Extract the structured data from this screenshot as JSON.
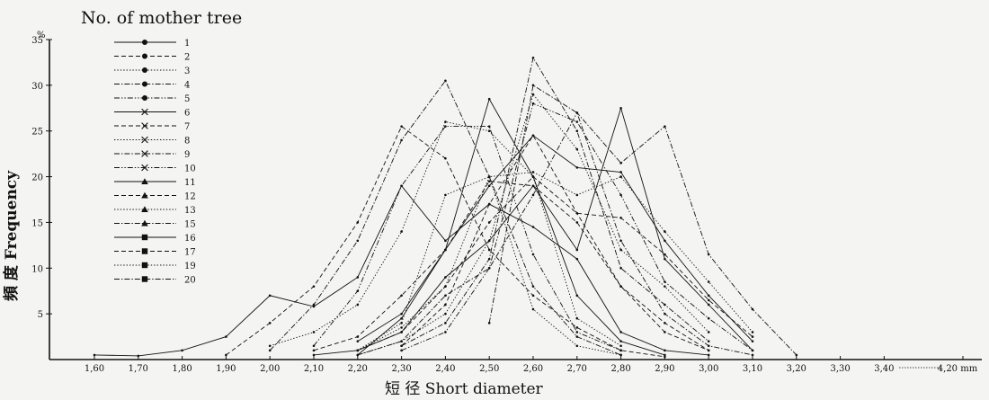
{
  "chart_data": {
    "type": "line",
    "legend_title": "No. of mother tree",
    "ylabel": "頻 度 Frequency",
    "xlabel": "短 径 Short diameter",
    "y_unit": "%",
    "ylim": [
      0,
      35
    ],
    "y_ticks": [
      "5",
      "10",
      "15",
      "20",
      "25",
      "30",
      "35"
    ],
    "x_ticks": [
      "1,60",
      "1,70",
      "1,80",
      "1,90",
      "2,00",
      "2,10",
      "2,20",
      "2,30",
      "2,40",
      "2,50",
      "2,60",
      "2,70",
      "2,80",
      "2,90",
      "3,00",
      "3,10",
      "3,20",
      "3,30",
      "3,40",
      "4,20 mm"
    ],
    "grid": false,
    "legend_position": "top-left",
    "series": [
      {
        "name": "1",
        "marker": "dot",
        "dash": "solid",
        "points": [
          [
            1.6,
            0.5
          ],
          [
            1.7,
            0.4
          ],
          [
            1.8,
            1.0
          ],
          [
            1.9,
            2.5
          ],
          [
            2.0,
            7.0
          ],
          [
            2.1,
            5.8
          ],
          [
            2.2,
            9.0
          ],
          [
            2.3,
            19.0
          ],
          [
            2.4,
            13.0
          ],
          [
            2.5,
            17.0
          ],
          [
            2.6,
            14.5
          ],
          [
            2.7,
            11.0
          ],
          [
            2.8,
            3.0
          ],
          [
            2.9,
            1.0
          ],
          [
            3.0,
            0.5
          ]
        ]
      },
      {
        "name": "2",
        "marker": "dot",
        "dash": "dash",
        "points": [
          [
            1.9,
            0.5
          ],
          [
            2.0,
            4.0
          ],
          [
            2.1,
            8.0
          ],
          [
            2.2,
            15.0
          ],
          [
            2.3,
            25.5
          ],
          [
            2.4,
            22.0
          ],
          [
            2.5,
            12.0
          ],
          [
            2.6,
            7.0
          ],
          [
            2.7,
            3.5
          ],
          [
            2.8,
            1.0
          ],
          [
            2.9,
            0.3
          ]
        ]
      },
      {
        "name": "3",
        "marker": "dot",
        "dash": "dot",
        "points": [
          [
            2.0,
            1.5
          ],
          [
            2.1,
            3.0
          ],
          [
            2.2,
            6.0
          ],
          [
            2.3,
            14.0
          ],
          [
            2.4,
            26.0
          ],
          [
            2.5,
            25.0
          ],
          [
            2.6,
            20.0
          ],
          [
            2.7,
            4.5
          ],
          [
            2.8,
            1.5
          ]
        ]
      },
      {
        "name": "4",
        "marker": "dot",
        "dash": "dashdot",
        "points": [
          [
            2.0,
            1.0
          ],
          [
            2.1,
            6.0
          ],
          [
            2.2,
            13.0
          ],
          [
            2.3,
            24.0
          ],
          [
            2.4,
            30.5
          ],
          [
            2.5,
            20.0
          ],
          [
            2.6,
            8.0
          ],
          [
            2.7,
            2.5
          ],
          [
            2.8,
            0.5
          ]
        ]
      },
      {
        "name": "5",
        "marker": "dot",
        "dash": "dashdotdot",
        "points": [
          [
            2.1,
            1.5
          ],
          [
            2.2,
            7.5
          ],
          [
            2.3,
            19.0
          ],
          [
            2.4,
            25.5
          ],
          [
            2.5,
            25.5
          ],
          [
            2.6,
            11.5
          ],
          [
            2.7,
            3.0
          ],
          [
            2.8,
            1.0
          ]
        ]
      },
      {
        "name": "6",
        "marker": "cross",
        "dash": "solid",
        "points": [
          [
            2.2,
            2.0
          ],
          [
            2.3,
            5.0
          ],
          [
            2.4,
            12.0
          ],
          [
            2.5,
            19.0
          ],
          [
            2.6,
            24.5
          ],
          [
            2.7,
            21.0
          ],
          [
            2.8,
            20.5
          ],
          [
            2.9,
            13.0
          ],
          [
            3.0,
            7.0
          ],
          [
            3.1,
            2.0
          ]
        ]
      },
      {
        "name": "7",
        "marker": "cross",
        "dash": "dash",
        "points": [
          [
            2.2,
            1.0
          ],
          [
            2.3,
            3.0
          ],
          [
            2.4,
            8.0
          ],
          [
            2.5,
            15.0
          ],
          [
            2.6,
            20.0
          ],
          [
            2.7,
            16.0
          ],
          [
            2.8,
            15.5
          ],
          [
            2.9,
            11.5
          ],
          [
            3.0,
            6.5
          ],
          [
            3.1,
            2.5
          ]
        ]
      },
      {
        "name": "8",
        "marker": "cross",
        "dash": "dot",
        "points": [
          [
            2.2,
            0.5
          ],
          [
            2.3,
            2.0
          ],
          [
            2.4,
            5.0
          ],
          [
            2.5,
            13.0
          ],
          [
            2.6,
            29.0
          ],
          [
            2.7,
            23.0
          ],
          [
            2.8,
            12.0
          ],
          [
            2.9,
            8.0
          ],
          [
            3.0,
            3.0
          ]
        ]
      },
      {
        "name": "9",
        "marker": "cross",
        "dash": "dashdot",
        "points": [
          [
            2.3,
            1.5
          ],
          [
            2.4,
            4.0
          ],
          [
            2.5,
            11.0
          ],
          [
            2.6,
            33.0
          ],
          [
            2.7,
            25.0
          ],
          [
            2.8,
            10.0
          ],
          [
            2.9,
            6.0
          ],
          [
            3.0,
            2.0
          ]
        ]
      },
      {
        "name": "10",
        "marker": "cross",
        "dash": "dashdotdot",
        "points": [
          [
            2.3,
            1.0
          ],
          [
            2.4,
            3.0
          ],
          [
            2.5,
            10.0
          ],
          [
            2.6,
            28.0
          ],
          [
            2.7,
            26.0
          ],
          [
            2.8,
            18.0
          ],
          [
            2.9,
            8.5
          ],
          [
            3.0,
            4.5
          ],
          [
            3.1,
            1.0
          ]
        ]
      },
      {
        "name": "11",
        "marker": "triangle",
        "dash": "solid",
        "points": [
          [
            2.1,
            0.5
          ],
          [
            2.2,
            1.0
          ],
          [
            2.3,
            3.0
          ],
          [
            2.4,
            9.0
          ],
          [
            2.5,
            13.0
          ],
          [
            2.6,
            19.0
          ],
          [
            2.7,
            12.0
          ],
          [
            2.8,
            27.5
          ],
          [
            2.9,
            11.0
          ],
          [
            3.0,
            6.0
          ],
          [
            3.1,
            1.0
          ]
        ]
      },
      {
        "name": "12",
        "marker": "triangle",
        "dash": "dash",
        "points": [
          [
            2.1,
            1.0
          ],
          [
            2.2,
            2.5
          ],
          [
            2.3,
            7.0
          ],
          [
            2.4,
            12.0
          ],
          [
            2.5,
            19.5
          ],
          [
            2.6,
            19.0
          ],
          [
            2.7,
            15.0
          ],
          [
            2.8,
            8.0
          ],
          [
            2.9,
            3.0
          ],
          [
            3.0,
            1.0
          ]
        ]
      },
      {
        "name": "13",
        "marker": "triangle",
        "dash": "dot",
        "points": [
          [
            2.2,
            1.0
          ],
          [
            2.3,
            3.5
          ],
          [
            2.4,
            8.0
          ],
          [
            2.5,
            20.0
          ],
          [
            2.6,
            20.5
          ],
          [
            2.7,
            18.0
          ],
          [
            2.8,
            20.0
          ],
          [
            2.9,
            14.0
          ],
          [
            3.0,
            8.5
          ],
          [
            3.1,
            3.0
          ]
        ]
      },
      {
        "name": "15",
        "marker": "triangle",
        "dash": "dashdot",
        "points": [
          [
            2.2,
            0.5
          ],
          [
            2.3,
            2.0
          ],
          [
            2.4,
            7.0
          ],
          [
            2.5,
            10.0
          ],
          [
            2.6,
            18.0
          ],
          [
            2.7,
            27.0
          ],
          [
            2.8,
            21.5
          ],
          [
            2.9,
            25.5
          ],
          [
            3.0,
            11.5
          ],
          [
            3.1,
            5.5
          ],
          [
            3.2,
            0.5
          ]
        ]
      },
      {
        "name": "16",
        "marker": "square",
        "dash": "solid",
        "points": [
          [
            2.2,
            0.5
          ],
          [
            2.3,
            4.5
          ],
          [
            2.4,
            12.0
          ],
          [
            2.5,
            28.5
          ],
          [
            2.6,
            20.0
          ],
          [
            2.7,
            7.0
          ],
          [
            2.8,
            2.0
          ],
          [
            2.9,
            0.5
          ]
        ]
      },
      {
        "name": "17",
        "marker": "square",
        "dash": "dash",
        "points": [
          [
            2.3,
            1.5
          ],
          [
            2.4,
            6.0
          ],
          [
            2.5,
            17.0
          ],
          [
            2.6,
            24.5
          ],
          [
            2.7,
            16.0
          ],
          [
            2.8,
            8.0
          ],
          [
            2.9,
            4.0
          ],
          [
            3.0,
            1.0
          ]
        ]
      },
      {
        "name": "19",
        "marker": "square",
        "dash": "dot",
        "points": [
          [
            2.2,
            1.0
          ],
          [
            2.3,
            4.0
          ],
          [
            2.4,
            18.0
          ],
          [
            2.5,
            20.0
          ],
          [
            2.6,
            5.5
          ],
          [
            2.7,
            1.5
          ],
          [
            2.8,
            0.5
          ]
        ]
      },
      {
        "name": "20",
        "marker": "square",
        "dash": "dashdot",
        "points": [
          [
            2.5,
            4.0
          ],
          [
            2.6,
            30.0
          ],
          [
            2.7,
            27.0
          ],
          [
            2.8,
            13.0
          ],
          [
            2.9,
            5.0
          ],
          [
            3.0,
            1.5
          ],
          [
            3.1,
            0.5
          ]
        ]
      }
    ]
  }
}
